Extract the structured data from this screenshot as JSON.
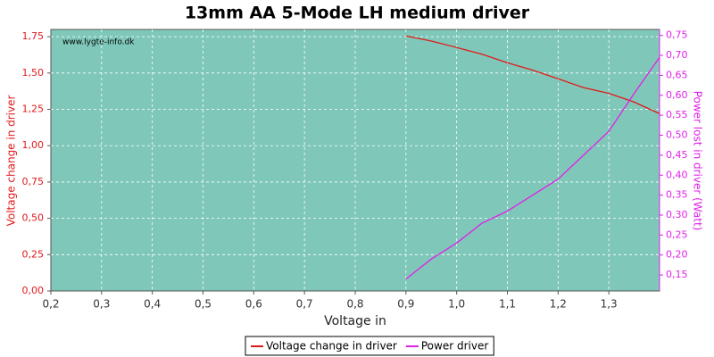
{
  "chart_data": {
    "type": "line",
    "title": "13mm AA 5-Mode LH medium driver",
    "watermark": "www.lygte-info.dk",
    "x_label": "Voltage in",
    "y_label": "Voltage change in driver",
    "y2_label": "Power lost in driver (Watt)",
    "x": [
      0.9,
      0.95,
      1.0,
      1.05,
      1.1,
      1.15,
      1.2,
      1.25,
      1.3,
      1.35,
      1.4
    ],
    "series": [
      {
        "name": "Voltage change in driver",
        "color": "#e0191b",
        "axis": "y",
        "values": [
          1.755,
          1.72,
          1.676,
          1.63,
          1.57,
          1.52,
          1.46,
          1.4,
          1.36,
          1.3,
          1.22
        ]
      },
      {
        "name": "Power driver",
        "color": "#e020e8",
        "axis": "y2",
        "values": [
          0.14,
          0.19,
          0.23,
          0.28,
          0.31,
          0.35,
          0.39,
          0.45,
          0.51,
          0.605,
          0.695
        ]
      }
    ],
    "xlim": [
      0.2,
      1.4
    ],
    "xticks": [
      {
        "value": 0.2,
        "label": "0,2"
      },
      {
        "value": 0.3,
        "label": "0,3"
      },
      {
        "value": 0.4,
        "label": "0,4"
      },
      {
        "value": 0.5,
        "label": "0,5"
      },
      {
        "value": 0.6,
        "label": "0,6"
      },
      {
        "value": 0.7,
        "label": "0,7"
      },
      {
        "value": 0.8,
        "label": "0,8"
      },
      {
        "value": 0.9,
        "label": "0,9"
      },
      {
        "value": 1.0,
        "label": "1,0"
      },
      {
        "value": 1.1,
        "label": "1,1"
      },
      {
        "value": 1.2,
        "label": "1,2"
      },
      {
        "value": 1.3,
        "label": "1,3"
      }
    ],
    "ylim": [
      0,
      1.8
    ],
    "yticks": [
      {
        "value": 0,
        "label": "0,00"
      },
      {
        "value": 0.25,
        "label": "0,25"
      },
      {
        "value": 0.5,
        "label": "0,50"
      },
      {
        "value": 0.75,
        "label": "0,75"
      },
      {
        "value": 1.0,
        "label": "1,00"
      },
      {
        "value": 1.25,
        "label": "1,25"
      },
      {
        "value": 1.5,
        "label": "1,50"
      },
      {
        "value": 1.75,
        "label": "1,75"
      }
    ],
    "y2lim": [
      0.11,
      0.765
    ],
    "y2ticks": [
      {
        "value": 0.15,
        "label": "0,15"
      },
      {
        "value": 0.2,
        "label": "0,20"
      },
      {
        "value": 0.25,
        "label": "0,25"
      },
      {
        "value": 0.3,
        "label": "0,30"
      },
      {
        "value": 0.35,
        "label": "0,35"
      },
      {
        "value": 0.4,
        "label": "0,40"
      },
      {
        "value": 0.45,
        "label": "0,45"
      },
      {
        "value": 0.5,
        "label": "0,50"
      },
      {
        "value": 0.55,
        "label": "0,55"
      },
      {
        "value": 0.6,
        "label": "0,60"
      },
      {
        "value": 0.65,
        "label": "0,65"
      },
      {
        "value": 0.7,
        "label": "0,70"
      },
      {
        "value": 0.75,
        "label": "0,75"
      }
    ],
    "grid": true,
    "legend": "bottom"
  }
}
